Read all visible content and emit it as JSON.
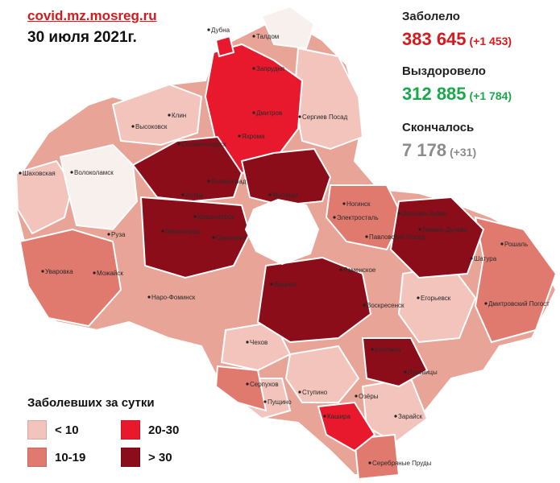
{
  "header": {
    "site": "covid.mz.mosreg.ru",
    "date": "30 июля 2021г."
  },
  "stats": [
    {
      "label": "Заболело",
      "value": "383 645",
      "delta": "(+1 453)",
      "color": "#d7191c"
    },
    {
      "label": "Выздоровело",
      "value": "312 885",
      "delta": "(+1 784)",
      "color": "#1aa84b"
    },
    {
      "label": "Скончалось",
      "value": "7 178",
      "delta": "(+31)",
      "color": "#8c8c8c"
    }
  ],
  "legend": {
    "title": "Заболевших за сутки",
    "items": [
      {
        "label": "< 10",
        "color": "#f2c4bc"
      },
      {
        "label": "20-30",
        "color": "#e8192c"
      },
      {
        "label": "10-19",
        "color": "#e07a6e"
      },
      {
        "label": "> 30",
        "color": "#8b0d1a"
      }
    ]
  },
  "map": {
    "cities": [
      "Талдом",
      "Дубна",
      "Запрудня",
      "Дмитров",
      "Яхрома",
      "Сергиев Посад",
      "Клин",
      "Высоковск",
      "Солнечногорск",
      "Шаховская",
      "Волоколамск",
      "Зеленоград",
      "Истра",
      "Мытищи",
      "Ногинск",
      "Электросталь",
      "Орехово-Зуево",
      "Ликино-Дулёво",
      "Рошаль",
      "Шатура",
      "Павловский Посад",
      "Красногорск",
      "Звенигород",
      "Одинцово",
      "Руза",
      "Можайск",
      "Уваровка",
      "Наро-Фоминск",
      "Раменское",
      "Егорьевск",
      "Воскресенск",
      "Дмитровский Погост",
      "Коломна",
      "Луховицы",
      "Зарайск",
      "Чехов",
      "Кашира",
      "Ступино",
      "Озёры",
      "Серпухов",
      "Пущино",
      "Видное",
      "Серебряные Пруды"
    ]
  }
}
